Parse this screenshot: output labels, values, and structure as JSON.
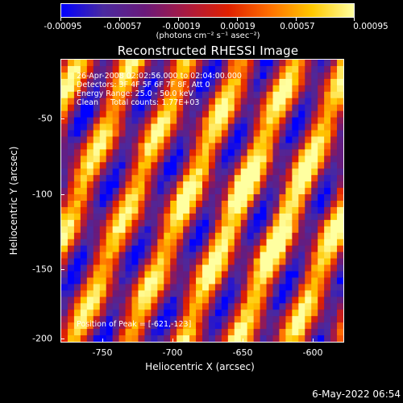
{
  "colorbar": {
    "tick_labels": [
      "-0.00095",
      "-0.00057",
      "-0.00019",
      "0.00019",
      "0.00057",
      "0.00095"
    ],
    "units": "(photons cm⁻² s⁻¹ asec⁻²)",
    "colors": [
      "#0000ff",
      "#4a2aa0",
      "#6a1a7a",
      "#aa1a40",
      "#e02000",
      "#ff7000",
      "#ffc800",
      "#ffffa0"
    ]
  },
  "title": "Reconstructed RHESSI Image",
  "info": {
    "time": "26-Apr-2008 02:02:56.000 to 02:04:00.000",
    "detectors": "Detectors: 3F 4F 5F 6F 7F 8F, Att 0",
    "energy": "Energy Range: 25.0 - 50.0 keV",
    "clean": "Clean     Total counts: 1.77E+03",
    "peak": "Position of Peak = [-621,-123]"
  },
  "axes": {
    "xlabel": "Heliocentric X (arcsec)",
    "ylabel": "Heliocentric Y (arcsec)",
    "x_ticks": [
      "-750",
      "-700",
      "-650",
      "-600"
    ],
    "y_ticks": [
      "-50",
      "-100",
      "-150",
      "-200"
    ]
  },
  "timestamp": "6-May-2022 06:54"
}
